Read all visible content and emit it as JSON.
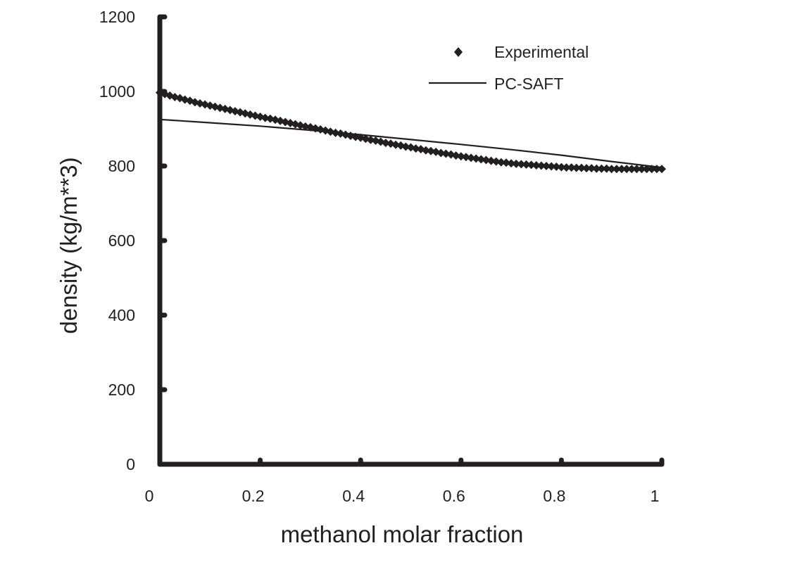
{
  "chart_data": {
    "type": "scatter",
    "title": "",
    "xlabel": "methanol molar fraction",
    "ylabel": "density (kg/m**3)",
    "xlim": [
      0,
      1
    ],
    "ylim": [
      0,
      1200
    ],
    "xticks": [
      0,
      0.2,
      0.4,
      0.6,
      0.8,
      1
    ],
    "xtick_labels": [
      "0",
      "0.2",
      "0.4",
      "0.6",
      "0.8",
      "1"
    ],
    "yticks": [
      0,
      200,
      400,
      600,
      800,
      1000,
      1200
    ],
    "ytick_labels": [
      "0",
      "200",
      "400",
      "600",
      "800",
      "1000",
      "1200"
    ],
    "grid": false,
    "legend_position": "top-right",
    "series": [
      {
        "name": "Experimental",
        "marker": "diamond",
        "color": "#231f20",
        "x": [
          0.0,
          0.01,
          0.02,
          0.03,
          0.04,
          0.05,
          0.06,
          0.07,
          0.08,
          0.09,
          0.1,
          0.11,
          0.12,
          0.13,
          0.14,
          0.15,
          0.16,
          0.17,
          0.18,
          0.19,
          0.2,
          0.21,
          0.22,
          0.23,
          0.24,
          0.25,
          0.26,
          0.27,
          0.28,
          0.29,
          0.3,
          0.31,
          0.32,
          0.33,
          0.34,
          0.35,
          0.36,
          0.37,
          0.38,
          0.39,
          0.4,
          0.41,
          0.42,
          0.43,
          0.44,
          0.45,
          0.46,
          0.47,
          0.48,
          0.49,
          0.5,
          0.51,
          0.52,
          0.53,
          0.54,
          0.55,
          0.56,
          0.57,
          0.58,
          0.59,
          0.6,
          0.61,
          0.62,
          0.63,
          0.64,
          0.65,
          0.66,
          0.67,
          0.68,
          0.69,
          0.7,
          0.71,
          0.72,
          0.73,
          0.74,
          0.75,
          0.76,
          0.77,
          0.78,
          0.79,
          0.8,
          0.81,
          0.82,
          0.83,
          0.84,
          0.85,
          0.86,
          0.87,
          0.88,
          0.89,
          0.9,
          0.91,
          0.92,
          0.93,
          0.94,
          0.95,
          0.96,
          0.97,
          0.98,
          0.99,
          1.0
        ],
        "y": [
          997,
          993,
          989,
          985,
          982,
          978,
          975,
          971,
          968,
          965,
          962,
          959,
          956,
          953,
          950,
          947,
          944,
          941,
          938,
          935,
          932,
          929,
          927,
          924,
          921,
          918,
          915,
          912,
          909,
          906,
          904,
          901,
          898,
          895,
          892,
          889,
          887,
          884,
          881,
          878,
          876,
          873,
          870,
          868,
          865,
          862,
          860,
          857,
          855,
          852,
          850,
          847,
          845,
          842,
          840,
          838,
          835,
          833,
          831,
          828,
          826,
          824,
          822,
          820,
          818,
          816,
          814,
          812,
          810,
          809,
          807,
          806,
          805,
          804,
          803,
          802,
          801,
          800,
          799,
          798,
          797,
          796,
          796,
          795,
          795,
          794,
          794,
          793,
          793,
          793,
          792,
          792,
          792,
          792,
          792,
          792,
          792,
          792,
          792,
          792,
          792
        ]
      },
      {
        "name": "PC-SAFT",
        "line_style": "solid",
        "color": "#231f20",
        "x": [
          0.0,
          0.1,
          0.2,
          0.3,
          0.4,
          0.5,
          0.6,
          0.7,
          0.8,
          0.9,
          1.0
        ],
        "y": [
          925,
          916,
          907,
          896,
          884,
          871,
          858,
          844,
          829,
          812,
          796
        ]
      }
    ]
  }
}
